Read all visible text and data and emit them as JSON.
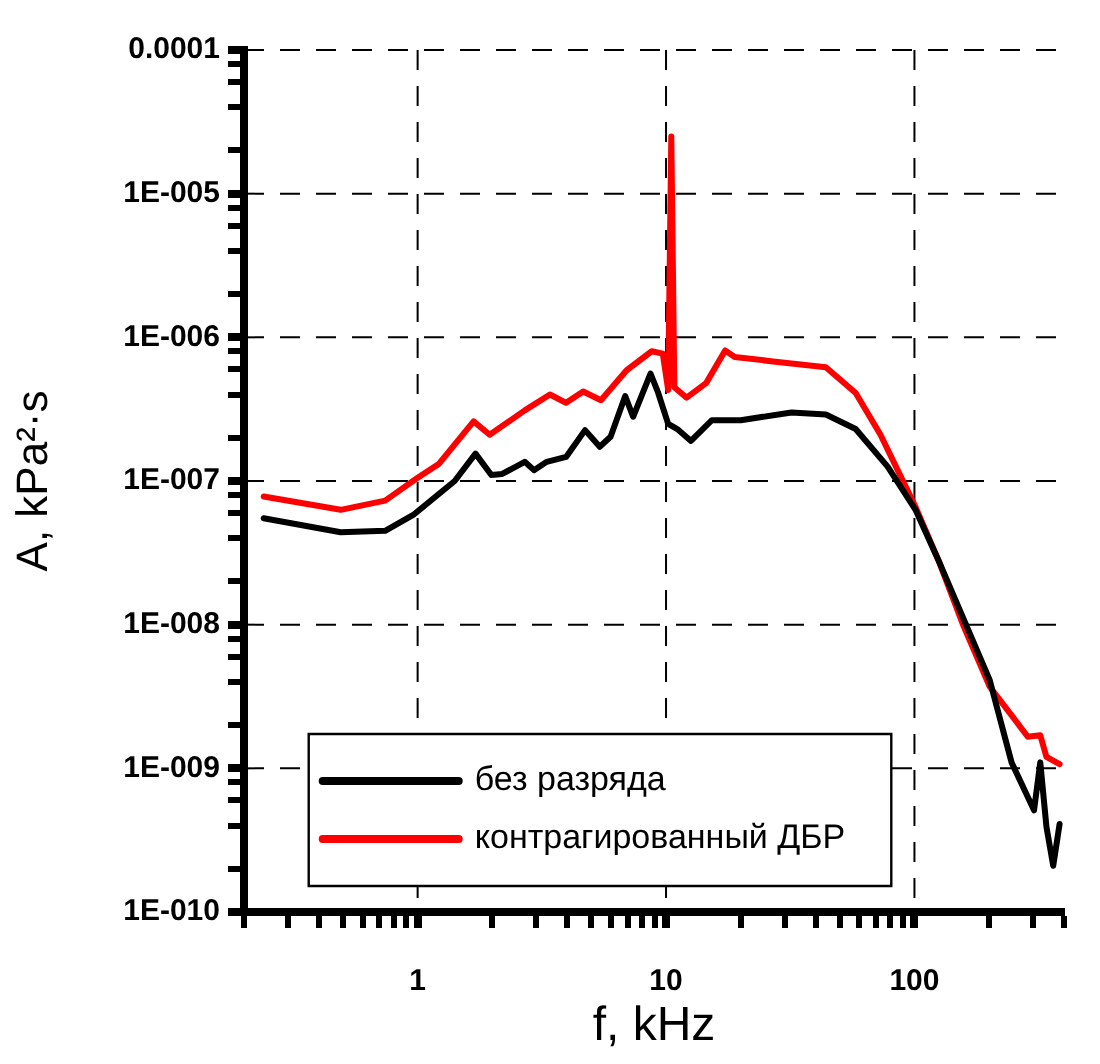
{
  "chart_data": {
    "type": "line",
    "xlabel": "f, kHz",
    "ylabel": "A, kPa²·s",
    "log": "xy",
    "grid": true,
    "legend": "bottom",
    "marker": "none",
    "line_style": "solid",
    "xlim": [
      0.2,
      400
    ],
    "ylim": [
      1e-10,
      0.0001
    ],
    "xticks": [
      {
        "value": 0.2,
        "label": null
      },
      {
        "value": 0.3,
        "label": null
      },
      {
        "value": 0.4,
        "label": null
      },
      {
        "value": 0.5,
        "label": null
      },
      {
        "value": 0.6,
        "label": null
      },
      {
        "value": 0.7,
        "label": null
      },
      {
        "value": 0.8,
        "label": null
      },
      {
        "value": 0.9,
        "label": null
      },
      1,
      {
        "value": 2,
        "label": null
      },
      {
        "value": 3,
        "label": null
      },
      {
        "value": 4,
        "label": null
      },
      {
        "value": 5,
        "label": null
      },
      {
        "value": 6,
        "label": null
      },
      {
        "value": 7,
        "label": null
      },
      {
        "value": 8,
        "label": null
      },
      {
        "value": 9,
        "label": null
      },
      10,
      {
        "value": 20,
        "label": null
      },
      {
        "value": 30,
        "label": null
      },
      {
        "value": 40,
        "label": null
      },
      {
        "value": 50,
        "label": null
      },
      {
        "value": 60,
        "label": null
      },
      {
        "value": 70,
        "label": null
      },
      {
        "value": 80,
        "label": null
      },
      {
        "value": 90,
        "label": null
      },
      100,
      {
        "value": 200,
        "label": null
      },
      {
        "value": 300,
        "label": null
      },
      {
        "value": 400,
        "label": null
      }
    ],
    "yticks": [
      {
        "value": 1e-10,
        "label": "1E-010"
      },
      {
        "value": 2e-10,
        "label": null
      },
      {
        "value": 4e-10,
        "label": null
      },
      {
        "value": 6e-10,
        "label": null
      },
      {
        "value": 8e-10,
        "label": null
      },
      {
        "value": 1e-09,
        "label": "1E-009"
      },
      {
        "value": 2e-09,
        "label": null
      },
      {
        "value": 4e-09,
        "label": null
      },
      {
        "value": 6e-09,
        "label": null
      },
      {
        "value": 8e-09,
        "label": null
      },
      {
        "value": 1e-08,
        "label": "1E-008"
      },
      {
        "value": 2e-08,
        "label": null
      },
      {
        "value": 4e-08,
        "label": null
      },
      {
        "value": 6e-08,
        "label": null
      },
      {
        "value": 8e-08,
        "label": null
      },
      {
        "value": 1e-07,
        "label": "1E-007"
      },
      {
        "value": 2e-07,
        "label": null
      },
      {
        "value": 4e-07,
        "label": null
      },
      {
        "value": 6e-07,
        "label": null
      },
      {
        "value": 8e-07,
        "label": null
      },
      {
        "value": 1e-06,
        "label": "1E-006"
      },
      {
        "value": 2e-06,
        "label": null
      },
      {
        "value": 4e-06,
        "label": null
      },
      {
        "value": 6e-06,
        "label": null
      },
      {
        "value": 8e-06,
        "label": null
      },
      {
        "value": 1e-05,
        "label": "1E-005"
      },
      {
        "value": 2e-05,
        "label": null
      },
      {
        "value": 4e-05,
        "label": null
      },
      {
        "value": 6e-05,
        "label": null
      },
      {
        "value": 8e-05,
        "label": null
      },
      {
        "value": 0.0001,
        "label": "0.0001"
      }
    ],
    "series": [
      {
        "name": "без разряда",
        "color": "#000000",
        "x": [
          0.24,
          0.49,
          0.74,
          0.96,
          1.41,
          1.71,
          1.98,
          2.19,
          2.7,
          2.94,
          3.31,
          3.96,
          4.72,
          5.41,
          5.98,
          6.85,
          7.37,
          8.66,
          9.3,
          10.2,
          11.1,
          12.6,
          15.3,
          20,
          32,
          44,
          58,
          78,
          101,
          125,
          201,
          246,
          303,
          321,
          340,
          362,
          384
        ],
        "values": [
          5.5e-08,
          4.4e-08,
          4.5e-08,
          5.8e-08,
          1e-07,
          1.55e-07,
          1.1e-07,
          1.12e-07,
          1.36e-07,
          1.19e-07,
          1.36e-07,
          1.47e-07,
          2.26e-07,
          1.73e-07,
          2.03e-07,
          3.9e-07,
          2.8e-07,
          5.6e-07,
          4.1e-07,
          2.5e-07,
          2.3e-07,
          1.9e-07,
          2.65e-07,
          2.65e-07,
          3e-07,
          2.9e-07,
          2.3e-07,
          1.26e-07,
          6.3e-08,
          2.8e-08,
          4.1e-09,
          1.1e-09,
          5.1e-10,
          1.1e-09,
          3.9e-10,
          2.1e-10,
          4.1e-10
        ]
      },
      {
        "name": "контрагированный ДБР",
        "color": "#ff0000",
        "x": [
          0.24,
          0.49,
          0.74,
          0.99,
          1.22,
          1.68,
          1.95,
          2.7,
          3.41,
          3.96,
          4.64,
          5.47,
          6.94,
          8.76,
          9.7,
          10.2,
          10.5,
          10.8,
          12.1,
          14.5,
          17.3,
          18.9,
          27,
          44,
          58,
          73,
          101,
          125,
          158,
          201,
          286,
          321,
          340,
          384
        ],
        "values": [
          7.8e-08,
          6.3e-08,
          7.3e-08,
          1.04e-07,
          1.32e-07,
          2.6e-07,
          2.1e-07,
          3.1e-07,
          4e-07,
          3.5e-07,
          4.2e-07,
          3.65e-07,
          5.9e-07,
          8e-07,
          7.7e-07,
          4.3e-07,
          2.5e-05,
          4.5e-07,
          3.8e-07,
          4.8e-07,
          8.1e-07,
          7.3e-07,
          6.8e-07,
          6.2e-07,
          4.1e-07,
          2.1e-07,
          6.6e-08,
          2.8e-08,
          9.7e-09,
          3.7e-09,
          1.66e-09,
          1.7e-09,
          1.2e-09,
          1.07e-09
        ]
      }
    ]
  }
}
